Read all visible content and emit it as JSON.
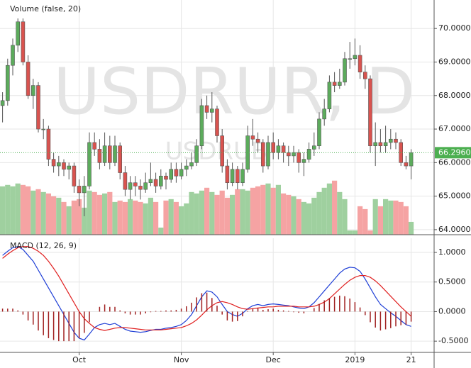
{
  "chart_data": [
    {
      "type": "candlestick",
      "title": "Volume (false, 20)",
      "watermark": "USDRUR, D",
      "watermark_symbol": "USDRUB",
      "ylim": [
        63.85,
        70.85
      ],
      "yticks": [
        {
          "value": 64,
          "label": "64.0000"
        },
        {
          "value": 65,
          "label": "65.0000"
        },
        {
          "value": 66,
          "label": "66.0000"
        },
        {
          "value": 67,
          "label": "67.0000"
        },
        {
          "value": 68,
          "label": "68.0000"
        },
        {
          "value": 69,
          "label": "69.0000"
        },
        {
          "value": 70,
          "label": "70.0000"
        }
      ],
      "xlim": [
        -0.5,
        84.5
      ],
      "grid": true,
      "up_color": "#5cab5c",
      "down_color": "#d9534f",
      "volume_up_color": "#9fd09f",
      "volume_down_color": "#f5a3a3",
      "last_price": {
        "value": 66.296,
        "label": "66.2960"
      },
      "last_price_color": "#4caf50",
      "candles": [
        [
          67.7,
          68.1,
          67.2,
          67.85
        ],
        [
          67.85,
          69.1,
          67.7,
          68.9
        ],
        [
          68.9,
          69.7,
          68.6,
          69.5
        ],
        [
          69.5,
          70.3,
          69.3,
          70.2
        ],
        [
          70.2,
          70.3,
          68.9,
          69.0
        ],
        [
          69.0,
          69.2,
          67.9,
          68.0
        ],
        [
          68.0,
          68.5,
          67.6,
          68.3
        ],
        [
          68.3,
          68.4,
          66.9,
          67.0
        ],
        [
          67.0,
          67.3,
          66.7,
          67.0
        ],
        [
          67.0,
          67.1,
          65.9,
          66.1
        ],
        [
          66.1,
          66.3,
          65.7,
          65.9
        ],
        [
          65.9,
          66.2,
          65.6,
          66.0
        ],
        [
          66.0,
          66.1,
          65.6,
          65.8
        ],
        [
          65.8,
          66.0,
          65.5,
          65.9
        ],
        [
          65.9,
          66.0,
          65.1,
          65.3
        ],
        [
          65.3,
          65.5,
          64.7,
          65.1
        ],
        [
          65.1,
          65.6,
          64.4,
          65.3
        ],
        [
          65.3,
          66.9,
          65.2,
          66.6
        ],
        [
          66.6,
          66.9,
          66.2,
          66.4
        ],
        [
          66.4,
          66.7,
          65.8,
          66.0
        ],
        [
          66.0,
          66.9,
          65.9,
          66.5
        ],
        [
          66.5,
          66.8,
          65.8,
          66.0
        ],
        [
          66.0,
          66.8,
          65.9,
          66.5
        ],
        [
          66.5,
          66.6,
          65.5,
          65.7
        ],
        [
          65.7,
          65.9,
          65.0,
          65.2
        ],
        [
          65.2,
          65.6,
          64.9,
          65.4
        ],
        [
          65.4,
          65.6,
          65.0,
          65.3
        ],
        [
          65.3,
          65.5,
          64.9,
          65.2
        ],
        [
          65.2,
          65.7,
          65.1,
          65.4
        ],
        [
          65.4,
          66.0,
          65.3,
          65.5
        ],
        [
          65.5,
          65.7,
          65.1,
          65.3
        ],
        [
          65.3,
          65.8,
          65.2,
          65.6
        ],
        [
          65.6,
          65.7,
          65.2,
          65.5
        ],
        [
          65.5,
          66.0,
          65.4,
          65.8
        ],
        [
          65.8,
          66.0,
          65.4,
          65.6
        ],
        [
          65.6,
          66.0,
          65.5,
          65.8
        ],
        [
          65.8,
          66.1,
          65.6,
          65.9
        ],
        [
          65.9,
          66.3,
          65.8,
          66.0
        ],
        [
          66.0,
          66.7,
          65.9,
          66.5
        ],
        [
          66.5,
          67.9,
          66.4,
          67.7
        ],
        [
          67.7,
          68.0,
          67.3,
          67.5
        ],
        [
          67.5,
          68.1,
          67.2,
          67.6
        ],
        [
          67.6,
          67.7,
          66.6,
          66.8
        ],
        [
          66.8,
          67.0,
          65.7,
          65.9
        ],
        [
          65.9,
          66.1,
          65.2,
          65.4
        ],
        [
          65.4,
          66.0,
          65.3,
          65.8
        ],
        [
          65.8,
          65.9,
          65.2,
          65.4
        ],
        [
          65.4,
          66.0,
          65.3,
          65.8
        ],
        [
          65.8,
          67.1,
          65.7,
          66.8
        ],
        [
          66.8,
          67.3,
          66.5,
          66.7
        ],
        [
          66.7,
          66.9,
          66.3,
          66.6
        ],
        [
          66.6,
          66.7,
          65.7,
          65.9
        ],
        [
          65.9,
          66.8,
          65.8,
          66.6
        ],
        [
          66.6,
          66.9,
          66.1,
          66.3
        ],
        [
          66.3,
          66.7,
          66.1,
          66.5
        ],
        [
          66.5,
          66.6,
          66.0,
          66.3
        ],
        [
          66.3,
          66.5,
          65.9,
          66.2
        ],
        [
          66.2,
          66.5,
          66.0,
          66.3
        ],
        [
          66.3,
          66.4,
          65.7,
          66.0
        ],
        [
          66.0,
          66.3,
          65.6,
          66.1
        ],
        [
          66.1,
          66.6,
          66.0,
          66.4
        ],
        [
          66.4,
          66.9,
          66.2,
          66.5
        ],
        [
          66.5,
          67.5,
          66.4,
          67.3
        ],
        [
          67.3,
          67.9,
          67.1,
          67.6
        ],
        [
          67.6,
          68.6,
          67.5,
          68.4
        ],
        [
          68.4,
          68.7,
          68.1,
          68.3
        ],
        [
          68.3,
          68.8,
          68.2,
          68.4
        ],
        [
          68.4,
          69.3,
          68.3,
          69.1
        ],
        [
          69.1,
          69.6,
          68.8,
          69.1
        ],
        [
          69.1,
          69.7,
          68.9,
          69.2
        ],
        [
          69.2,
          69.5,
          68.5,
          68.7
        ],
        [
          68.7,
          68.9,
          68.2,
          68.5
        ],
        [
          68.5,
          68.6,
          66.3,
          66.5
        ],
        [
          66.5,
          67.2,
          65.9,
          66.6
        ],
        [
          66.6,
          67.0,
          66.3,
          66.5
        ],
        [
          66.5,
          67.1,
          66.3,
          66.6
        ],
        [
          66.6,
          67.0,
          66.4,
          66.7
        ],
        [
          66.7,
          66.9,
          66.4,
          66.6
        ],
        [
          66.6,
          66.7,
          65.9,
          66.0
        ],
        [
          66.0,
          66.2,
          65.8,
          65.9
        ],
        [
          65.9,
          66.4,
          65.5,
          66.296
        ]
      ],
      "volume": [
        68,
        70,
        68,
        72,
        70,
        68,
        62,
        64,
        60,
        58,
        54,
        52,
        46,
        40,
        48,
        50,
        38,
        62,
        60,
        56,
        58,
        60,
        46,
        48,
        46,
        50,
        48,
        46,
        44,
        52,
        46,
        10,
        48,
        50,
        46,
        40,
        44,
        60,
        58,
        62,
        66,
        60,
        56,
        62,
        52,
        56,
        64,
        64,
        62,
        66,
        68,
        70,
        72,
        66,
        70,
        58,
        56,
        54,
        50,
        46,
        44,
        52,
        60,
        66,
        72,
        76,
        60,
        50,
        6,
        6,
        40,
        36,
        6,
        50,
        40,
        50,
        48,
        48,
        46,
        40,
        18
      ],
      "volume_lim": [
        0,
        330
      ]
    },
    {
      "type": "macd",
      "title": "MACD (12, 26, 9)",
      "ylim": [
        -0.69,
        1.24
      ],
      "xlim": [
        -0.5,
        84.5
      ],
      "grid": true,
      "yticks": [
        {
          "value": 1,
          "label": "1.0000"
        },
        {
          "value": 0.5,
          "label": "0.5000"
        },
        {
          "value": 0,
          "label": "0.0000"
        },
        {
          "value": -0.5,
          "label": "-0.5000"
        }
      ],
      "xticks": [
        {
          "value": 15,
          "label": "Oct"
        },
        {
          "value": 35,
          "label": "Nov"
        },
        {
          "value": 53,
          "label": "Dec"
        },
        {
          "value": 69,
          "label": "2019"
        },
        {
          "value": 80,
          "label": "21"
        }
      ],
      "series": [
        {
          "type": "line",
          "color": "#1f3fd6",
          "values": [
            0.95,
            1.02,
            1.08,
            1.1,
            1.05,
            0.95,
            0.85,
            0.7,
            0.55,
            0.4,
            0.25,
            0.1,
            -0.05,
            -0.2,
            -0.35,
            -0.45,
            -0.48,
            -0.38,
            -0.27,
            -0.22,
            -0.2,
            -0.22,
            -0.2,
            -0.25,
            -0.3,
            -0.33,
            -0.34,
            -0.35,
            -0.34,
            -0.32,
            -0.3,
            -0.3,
            -0.28,
            -0.27,
            -0.25,
            -0.22,
            -0.15,
            -0.05,
            0.1,
            0.25,
            0.35,
            0.33,
            0.25,
            0.12,
            0.0,
            -0.05,
            -0.08,
            -0.03,
            0.05,
            0.1,
            0.12,
            0.1,
            0.12,
            0.13,
            0.12,
            0.11,
            0.1,
            0.08,
            0.06,
            0.05,
            0.08,
            0.15,
            0.25,
            0.35,
            0.45,
            0.55,
            0.65,
            0.72,
            0.75,
            0.74,
            0.68,
            0.55,
            0.4,
            0.25,
            0.12,
            0.05,
            -0.02,
            -0.08,
            -0.15,
            -0.22,
            -0.25
          ]
        },
        {
          "type": "line",
          "color": "#e02020",
          "values": [
            0.9,
            0.97,
            1.03,
            1.08,
            1.1,
            1.1,
            1.07,
            1.02,
            0.95,
            0.85,
            0.73,
            0.6,
            0.45,
            0.3,
            0.15,
            0.0,
            -0.12,
            -0.2,
            -0.27,
            -0.3,
            -0.32,
            -0.3,
            -0.28,
            -0.27,
            -0.27,
            -0.28,
            -0.29,
            -0.3,
            -0.31,
            -0.31,
            -0.31,
            -0.31,
            -0.3,
            -0.29,
            -0.28,
            -0.27,
            -0.24,
            -0.2,
            -0.14,
            -0.06,
            0.03,
            0.1,
            0.15,
            0.17,
            0.15,
            0.12,
            0.08,
            0.05,
            0.04,
            0.05,
            0.06,
            0.07,
            0.08,
            0.08,
            0.09,
            0.09,
            0.09,
            0.09,
            0.08,
            0.08,
            0.08,
            0.09,
            0.12,
            0.16,
            0.22,
            0.3,
            0.38,
            0.46,
            0.53,
            0.58,
            0.61,
            0.61,
            0.58,
            0.52,
            0.44,
            0.35,
            0.26,
            0.17,
            0.08,
            0.0,
            -0.08
          ]
        },
        {
          "type": "bar",
          "color": "#a02020",
          "values": [
            0.05,
            0.05,
            0.05,
            0.02,
            -0.05,
            -0.15,
            -0.22,
            -0.32,
            -0.4,
            -0.45,
            -0.48,
            -0.5,
            -0.5,
            -0.5,
            -0.5,
            -0.45,
            -0.36,
            -0.18,
            0,
            0.08,
            0.12,
            0.08,
            0.08,
            0.02,
            -0.03,
            -0.05,
            -0.05,
            -0.05,
            -0.03,
            -0.01,
            0.01,
            0.01,
            0.02,
            0.02,
            0.03,
            0.05,
            0.09,
            0.15,
            0.24,
            0.31,
            0.32,
            0.23,
            0.1,
            -0.05,
            -0.15,
            -0.17,
            -0.16,
            -0.08,
            0.01,
            0.05,
            0.06,
            0.03,
            0.04,
            0.05,
            0.03,
            0.02,
            0.01,
            -0.01,
            -0.02,
            -0.03,
            0,
            0.06,
            0.13,
            0.19,
            0.23,
            0.25,
            0.27,
            0.26,
            0.22,
            0.16,
            0.07,
            -0.06,
            -0.18,
            -0.27,
            -0.32,
            -0.3,
            -0.28,
            -0.25,
            -0.23,
            -0.22,
            -0.17
          ]
        }
      ]
    }
  ]
}
